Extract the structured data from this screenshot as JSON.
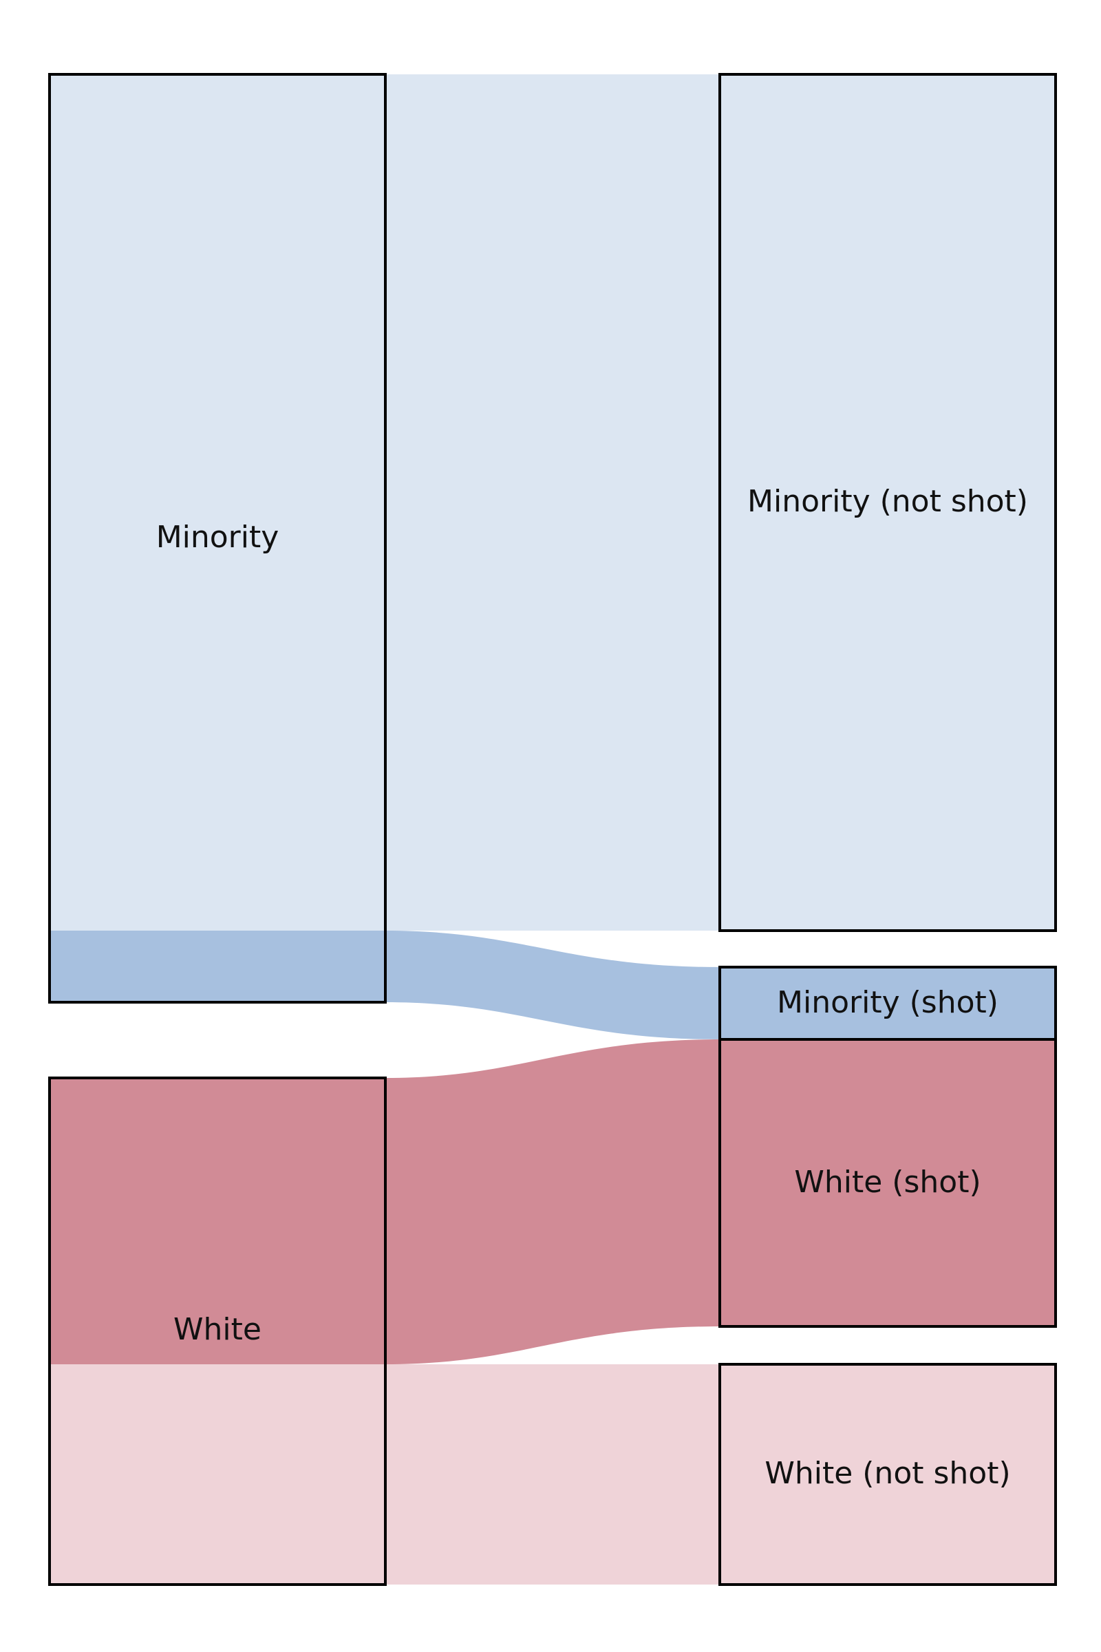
{
  "diagram": {
    "type": "sankey",
    "colors": {
      "minority_not_shot": "#dce6f2",
      "minority_shot": "#a7c0df",
      "white_shot": "#d18b96",
      "white_not_shot": "#efd3d8",
      "outline": "#000000"
    },
    "nodes": {
      "minority": {
        "label": "Minority"
      },
      "white": {
        "label": "White"
      },
      "minority_not_shot": {
        "label": "Minority (not shot)"
      },
      "minority_shot": {
        "label": "Minority (shot)"
      },
      "white_shot": {
        "label": "White (shot)"
      },
      "white_not_shot": {
        "label": "White (not shot)"
      }
    },
    "flows": [
      {
        "from": "Minority",
        "to": "Minority (not shot)",
        "relative_size": 0.92
      },
      {
        "from": "Minority",
        "to": "Minority (shot)",
        "relative_size": 0.08
      },
      {
        "from": "White",
        "to": "White (shot)",
        "relative_size": 0.57
      },
      {
        "from": "White",
        "to": "White (not shot)",
        "relative_size": 0.43
      }
    ]
  }
}
